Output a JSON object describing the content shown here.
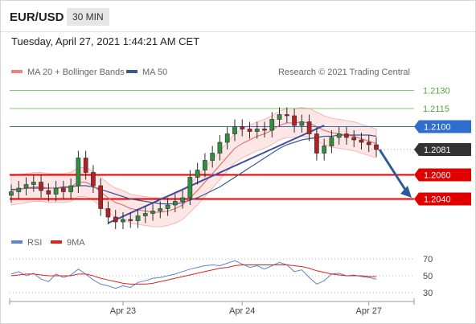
{
  "header": {
    "pair": "EUR/USD",
    "timeframe": "30 MIN",
    "datetime": "Tuesday, April 27, 2021 1:44:21 AM CET"
  },
  "legend": {
    "ma20": "MA 20 + Bollinger Bands",
    "ma50": "MA 50",
    "credit": "Research © 2021 Trading Central",
    "rsi": "RSI",
    "ma9": "9MA"
  },
  "colors": {
    "ma20": "#e06666",
    "band_fill": "#fde0e0",
    "ma50": "#3a5a96",
    "resistance": "#8ac66a",
    "pivot": "#2f6ecd",
    "support": "#e00000",
    "current": "#333333",
    "trend": "#3d4e9e",
    "arrow": "#2d5b9a",
    "candle_up": "#2f8f3f",
    "candle_down": "#b22222",
    "rsi": "#5b84d6",
    "rsi_ma": "#e32020"
  },
  "chart_data": [
    {
      "type": "candlestick",
      "instrument": "EUR/USD",
      "timeframe": "30 MIN",
      "x_ticks": [
        "Apr 23",
        "Apr 24",
        "Apr 27"
      ],
      "ylim": [
        1.2015,
        1.2145
      ],
      "levels": [
        {
          "label": "1.2130",
          "value": 1.213,
          "kind": "resistance"
        },
        {
          "label": "1.2115",
          "value": 1.2115,
          "kind": "resistance"
        },
        {
          "label": "1.2100",
          "value": 1.21,
          "kind": "pivot"
        },
        {
          "label": "1.2081",
          "value": 1.2081,
          "kind": "current"
        },
        {
          "label": "1.2060",
          "value": 1.206,
          "kind": "support"
        },
        {
          "label": "1.2040",
          "value": 1.204,
          "kind": "support"
        }
      ],
      "series": [
        {
          "name": "EUR/USD",
          "close": [
            1.2046,
            1.2049,
            1.2052,
            1.2054,
            1.2047,
            1.2044,
            1.2049,
            1.2046,
            1.2051,
            1.2074,
            1.2062,
            1.2051,
            1.2032,
            1.2025,
            1.2021,
            1.2023,
            1.2022,
            1.2026,
            1.2028,
            1.203,
            1.2032,
            1.2035,
            1.2038,
            1.2041,
            1.2058,
            1.2064,
            1.2072,
            1.2078,
            1.2087,
            1.2094,
            1.21,
            1.2098,
            1.2096,
            1.2098,
            1.2097,
            1.2106,
            1.211,
            1.2109,
            1.2101,
            1.2104,
            1.2094,
            1.2078,
            1.2084,
            1.2091,
            1.2094,
            1.2091,
            1.2089,
            1.2087,
            1.2085,
            1.2081
          ]
        },
        {
          "name": "MA 20",
          "values": [
            1.2047,
            1.2048,
            1.2049,
            1.205,
            1.205,
            1.2049,
            1.2049,
            1.2049,
            1.205,
            1.2054,
            1.2054,
            1.2051,
            1.2046,
            1.2041,
            1.2037,
            1.2035,
            1.2032,
            1.2031,
            1.203,
            1.2029,
            1.2029,
            1.203,
            1.2032,
            1.2035,
            1.2041,
            1.2047,
            1.2054,
            1.2061,
            1.2068,
            1.2075,
            1.2082,
            1.2086,
            1.2089,
            1.2092,
            1.2094,
            1.2097,
            1.2101,
            1.2103,
            1.2103,
            1.2104,
            1.2103,
            1.21,
            1.2097,
            1.2095,
            1.2094,
            1.2093,
            1.2092,
            1.209,
            1.2088,
            1.2086
          ]
        },
        {
          "name": "MA 50",
          "values": [
            1.2048,
            1.2048,
            1.2049,
            1.2049,
            1.2049,
            1.2049,
            1.2049,
            1.205,
            1.205,
            1.2051,
            1.2051,
            1.205,
            1.2048,
            1.2046,
            1.2044,
            1.2042,
            1.204,
            1.2039,
            1.2038,
            1.2037,
            1.2036,
            1.2036,
            1.2036,
            1.2037,
            1.2039,
            1.2041,
            1.2044,
            1.2047,
            1.205,
            1.2054,
            1.2058,
            1.2062,
            1.2066,
            1.207,
            1.2074,
            1.2078,
            1.2082,
            1.2085,
            1.2087,
            1.2089,
            1.209,
            1.2091,
            1.2092,
            1.2092,
            1.2093,
            1.2093,
            1.2093,
            1.2093,
            1.2093,
            1.2092
          ]
        }
      ]
    },
    {
      "type": "line",
      "ylim": [
        25,
        75
      ],
      "y_ticks": [
        70,
        50,
        30
      ],
      "series": [
        {
          "name": "RSI",
          "values": [
            52,
            55,
            50,
            53,
            46,
            43,
            52,
            48,
            51,
            58,
            52,
            45,
            40,
            38,
            35,
            38,
            36,
            42,
            44,
            47,
            48,
            50,
            52,
            55,
            58,
            60,
            62,
            63,
            62,
            65,
            68,
            64,
            60,
            62,
            58,
            62,
            66,
            63,
            55,
            57,
            48,
            40,
            44,
            52,
            53,
            50,
            51,
            49,
            48,
            46
          ]
        },
        {
          "name": "9MA",
          "values": [
            50,
            51,
            52,
            52,
            51,
            50,
            50,
            50,
            50,
            52,
            52,
            50,
            47,
            45,
            43,
            41,
            40,
            40,
            40,
            41,
            43,
            45,
            47,
            49,
            51,
            53,
            55,
            57,
            59,
            60,
            62,
            63,
            63,
            63,
            63,
            63,
            63,
            63,
            62,
            61,
            59,
            56,
            54,
            52,
            51,
            50,
            50,
            50,
            49,
            49
          ]
        }
      ]
    }
  ]
}
